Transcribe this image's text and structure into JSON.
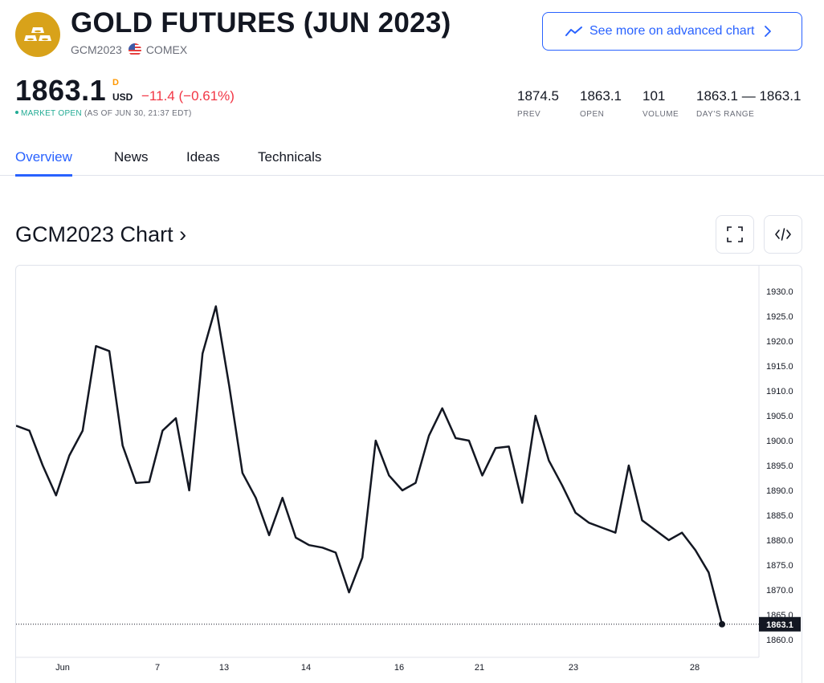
{
  "header": {
    "title": "GOLD FUTURES (JUN 2023)",
    "symbol": "GCM2023",
    "exchange": "COMEX",
    "logo_icon": "gold-bars-icon",
    "flag_icon": "us-flag-icon",
    "advanced_chart_label": "See more on advanced chart"
  },
  "quote": {
    "price": "1863.1",
    "interval": "D",
    "currency": "USD",
    "change": "−11.4 (−0.61%)",
    "market_status": "MARKET OPEN",
    "as_of": "(AS OF JUN 30, 21:37 EDT)"
  },
  "stats": [
    {
      "value": "1874.5",
      "label": "PREV"
    },
    {
      "value": "1863.1",
      "label": "OPEN"
    },
    {
      "value": "101",
      "label": "VOLUME"
    },
    {
      "value": "1863.1 — 1863.1",
      "label": "DAY'S RANGE"
    }
  ],
  "tabs": [
    "Overview",
    "News",
    "Ideas",
    "Technicals"
  ],
  "active_tab": "Overview",
  "chart_section": {
    "title": "GCM2023 Chart ›",
    "fullscreen_icon": "fullscreen-icon",
    "embed_icon": "code-embed-icon"
  },
  "colors": {
    "accent": "#2962ff",
    "negative": "#f23645",
    "positive": "#22ab94",
    "logo": "#d8a21a",
    "line": "#131722"
  },
  "chart_data": {
    "type": "line",
    "series": [
      {
        "values": [
          1903,
          1902,
          1895,
          1889,
          1897,
          1902,
          1919,
          1918,
          1899,
          1891.5,
          1891.7,
          1902,
          1904.5,
          1890,
          1917.5,
          1927,
          1911,
          1893.5,
          1888.5,
          1881,
          1888.5,
          1880.5,
          1879,
          1878.5,
          1877.5,
          1869.5,
          1876.5,
          1900,
          1893,
          1890,
          1891.5,
          1901,
          1906.5,
          1900.5,
          1900,
          1893,
          1898.5,
          1898.8,
          1887.5,
          1905,
          1896,
          1891,
          1885.5,
          1883.5,
          1882.5,
          1881.5,
          1895,
          1884,
          1882,
          1880,
          1881.5,
          1878,
          1873.5,
          1863.1
        ]
      }
    ],
    "x_tick_labels": [
      "Jun",
      "7",
      "13",
      "14",
      "16",
      "21",
      "23",
      "28"
    ],
    "y_tick_labels": [
      "1930.0",
      "1925.0",
      "1920.0",
      "1915.0",
      "1910.0",
      "1905.0",
      "1900.0",
      "1895.0",
      "1890.0",
      "1885.0",
      "1880.0",
      "1875.0",
      "1870.0",
      "1865.0",
      "1860.0"
    ],
    "ylim": [
      1860,
      1930
    ],
    "last_value_label": "1863.1",
    "grid": false,
    "legend": "none"
  }
}
